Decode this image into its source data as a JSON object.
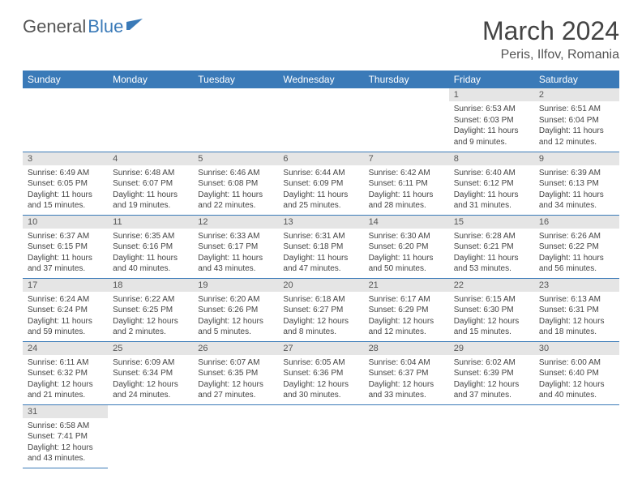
{
  "logo": {
    "part1": "General",
    "part2": "Blue"
  },
  "title": "March 2024",
  "location": "Peris, Ilfov, Romania",
  "colors": {
    "header_bg": "#3a7ab8",
    "header_text": "#ffffff",
    "daynum_bg": "#e5e5e5",
    "row_border": "#3a7ab8",
    "body_text": "#444444",
    "page_bg": "#ffffff"
  },
  "fonts": {
    "title_size_pt": 24,
    "location_size_pt": 12,
    "header_size_pt": 9,
    "daynum_size_pt": 8,
    "body_size_pt": 7.5
  },
  "day_labels": [
    "Sunday",
    "Monday",
    "Tuesday",
    "Wednesday",
    "Thursday",
    "Friday",
    "Saturday"
  ],
  "weeks": [
    [
      null,
      null,
      null,
      null,
      null,
      {
        "n": "1",
        "sunrise": "Sunrise: 6:53 AM",
        "sunset": "Sunset: 6:03 PM",
        "day1": "Daylight: 11 hours",
        "day2": "and 9 minutes."
      },
      {
        "n": "2",
        "sunrise": "Sunrise: 6:51 AM",
        "sunset": "Sunset: 6:04 PM",
        "day1": "Daylight: 11 hours",
        "day2": "and 12 minutes."
      }
    ],
    [
      {
        "n": "3",
        "sunrise": "Sunrise: 6:49 AM",
        "sunset": "Sunset: 6:05 PM",
        "day1": "Daylight: 11 hours",
        "day2": "and 15 minutes."
      },
      {
        "n": "4",
        "sunrise": "Sunrise: 6:48 AM",
        "sunset": "Sunset: 6:07 PM",
        "day1": "Daylight: 11 hours",
        "day2": "and 19 minutes."
      },
      {
        "n": "5",
        "sunrise": "Sunrise: 6:46 AM",
        "sunset": "Sunset: 6:08 PM",
        "day1": "Daylight: 11 hours",
        "day2": "and 22 minutes."
      },
      {
        "n": "6",
        "sunrise": "Sunrise: 6:44 AM",
        "sunset": "Sunset: 6:09 PM",
        "day1": "Daylight: 11 hours",
        "day2": "and 25 minutes."
      },
      {
        "n": "7",
        "sunrise": "Sunrise: 6:42 AM",
        "sunset": "Sunset: 6:11 PM",
        "day1": "Daylight: 11 hours",
        "day2": "and 28 minutes."
      },
      {
        "n": "8",
        "sunrise": "Sunrise: 6:40 AM",
        "sunset": "Sunset: 6:12 PM",
        "day1": "Daylight: 11 hours",
        "day2": "and 31 minutes."
      },
      {
        "n": "9",
        "sunrise": "Sunrise: 6:39 AM",
        "sunset": "Sunset: 6:13 PM",
        "day1": "Daylight: 11 hours",
        "day2": "and 34 minutes."
      }
    ],
    [
      {
        "n": "10",
        "sunrise": "Sunrise: 6:37 AM",
        "sunset": "Sunset: 6:15 PM",
        "day1": "Daylight: 11 hours",
        "day2": "and 37 minutes."
      },
      {
        "n": "11",
        "sunrise": "Sunrise: 6:35 AM",
        "sunset": "Sunset: 6:16 PM",
        "day1": "Daylight: 11 hours",
        "day2": "and 40 minutes."
      },
      {
        "n": "12",
        "sunrise": "Sunrise: 6:33 AM",
        "sunset": "Sunset: 6:17 PM",
        "day1": "Daylight: 11 hours",
        "day2": "and 43 minutes."
      },
      {
        "n": "13",
        "sunrise": "Sunrise: 6:31 AM",
        "sunset": "Sunset: 6:18 PM",
        "day1": "Daylight: 11 hours",
        "day2": "and 47 minutes."
      },
      {
        "n": "14",
        "sunrise": "Sunrise: 6:30 AM",
        "sunset": "Sunset: 6:20 PM",
        "day1": "Daylight: 11 hours",
        "day2": "and 50 minutes."
      },
      {
        "n": "15",
        "sunrise": "Sunrise: 6:28 AM",
        "sunset": "Sunset: 6:21 PM",
        "day1": "Daylight: 11 hours",
        "day2": "and 53 minutes."
      },
      {
        "n": "16",
        "sunrise": "Sunrise: 6:26 AM",
        "sunset": "Sunset: 6:22 PM",
        "day1": "Daylight: 11 hours",
        "day2": "and 56 minutes."
      }
    ],
    [
      {
        "n": "17",
        "sunrise": "Sunrise: 6:24 AM",
        "sunset": "Sunset: 6:24 PM",
        "day1": "Daylight: 11 hours",
        "day2": "and 59 minutes."
      },
      {
        "n": "18",
        "sunrise": "Sunrise: 6:22 AM",
        "sunset": "Sunset: 6:25 PM",
        "day1": "Daylight: 12 hours",
        "day2": "and 2 minutes."
      },
      {
        "n": "19",
        "sunrise": "Sunrise: 6:20 AM",
        "sunset": "Sunset: 6:26 PM",
        "day1": "Daylight: 12 hours",
        "day2": "and 5 minutes."
      },
      {
        "n": "20",
        "sunrise": "Sunrise: 6:18 AM",
        "sunset": "Sunset: 6:27 PM",
        "day1": "Daylight: 12 hours",
        "day2": "and 8 minutes."
      },
      {
        "n": "21",
        "sunrise": "Sunrise: 6:17 AM",
        "sunset": "Sunset: 6:29 PM",
        "day1": "Daylight: 12 hours",
        "day2": "and 12 minutes."
      },
      {
        "n": "22",
        "sunrise": "Sunrise: 6:15 AM",
        "sunset": "Sunset: 6:30 PM",
        "day1": "Daylight: 12 hours",
        "day2": "and 15 minutes."
      },
      {
        "n": "23",
        "sunrise": "Sunrise: 6:13 AM",
        "sunset": "Sunset: 6:31 PM",
        "day1": "Daylight: 12 hours",
        "day2": "and 18 minutes."
      }
    ],
    [
      {
        "n": "24",
        "sunrise": "Sunrise: 6:11 AM",
        "sunset": "Sunset: 6:32 PM",
        "day1": "Daylight: 12 hours",
        "day2": "and 21 minutes."
      },
      {
        "n": "25",
        "sunrise": "Sunrise: 6:09 AM",
        "sunset": "Sunset: 6:34 PM",
        "day1": "Daylight: 12 hours",
        "day2": "and 24 minutes."
      },
      {
        "n": "26",
        "sunrise": "Sunrise: 6:07 AM",
        "sunset": "Sunset: 6:35 PM",
        "day1": "Daylight: 12 hours",
        "day2": "and 27 minutes."
      },
      {
        "n": "27",
        "sunrise": "Sunrise: 6:05 AM",
        "sunset": "Sunset: 6:36 PM",
        "day1": "Daylight: 12 hours",
        "day2": "and 30 minutes."
      },
      {
        "n": "28",
        "sunrise": "Sunrise: 6:04 AM",
        "sunset": "Sunset: 6:37 PM",
        "day1": "Daylight: 12 hours",
        "day2": "and 33 minutes."
      },
      {
        "n": "29",
        "sunrise": "Sunrise: 6:02 AM",
        "sunset": "Sunset: 6:39 PM",
        "day1": "Daylight: 12 hours",
        "day2": "and 37 minutes."
      },
      {
        "n": "30",
        "sunrise": "Sunrise: 6:00 AM",
        "sunset": "Sunset: 6:40 PM",
        "day1": "Daylight: 12 hours",
        "day2": "and 40 minutes."
      }
    ],
    [
      {
        "n": "31",
        "sunrise": "Sunrise: 6:58 AM",
        "sunset": "Sunset: 7:41 PM",
        "day1": "Daylight: 12 hours",
        "day2": "and 43 minutes."
      },
      null,
      null,
      null,
      null,
      null,
      null
    ]
  ]
}
